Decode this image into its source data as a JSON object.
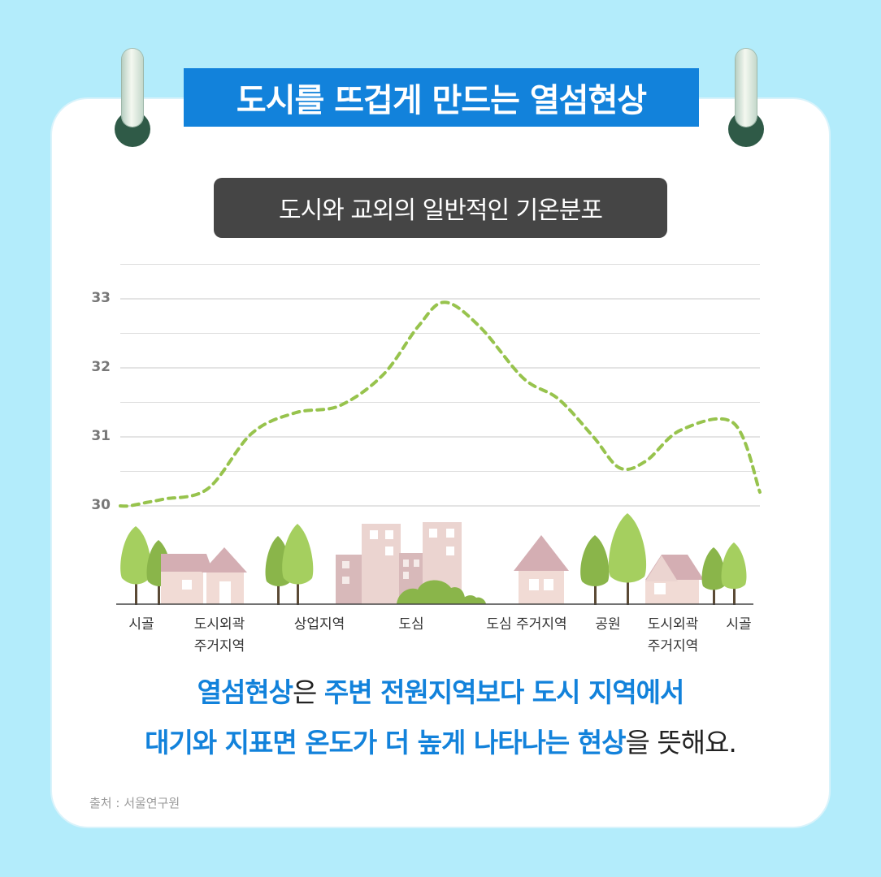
{
  "title": "도시를 뜨겁게 만드는 열섬현상",
  "chart_data": {
    "type": "line",
    "title": "도시와 교외의 일반적인 기온분포",
    "categories": [
      "시골",
      "도시외곽\n주거지역",
      "상업지역",
      "도심",
      "도심 주거지역",
      "공원",
      "도시외곽\n주거지역",
      "시골"
    ],
    "yticks": [
      30,
      31,
      32,
      33
    ],
    "ylim": [
      29.5,
      33.5
    ],
    "series": [
      {
        "x": [
          0,
          0.1,
          0.3,
          0.5,
          1.0,
          1.5,
          2.0,
          2.5,
          3.0,
          3.4,
          3.7,
          4.1,
          4.6,
          5.0,
          5.4,
          5.7,
          6.0,
          6.4,
          7.0,
          7.3
        ],
        "values": [
          30.0,
          30.0,
          30.05,
          30.1,
          30.25,
          31.05,
          31.35,
          31.45,
          31.9,
          32.6,
          32.95,
          32.6,
          31.85,
          31.55,
          31.0,
          30.55,
          30.65,
          31.1,
          31.2,
          30.2
        ],
        "color": "#97c34d",
        "style": "dashed"
      }
    ],
    "grid": true,
    "legend": "none"
  },
  "caption": {
    "line1": [
      {
        "text": "열섬현상",
        "hl": true
      },
      {
        "text": "은 ",
        "hl": false
      },
      {
        "text": "주변 전원지역보다 도시 지역에서",
        "hl": true
      }
    ],
    "line2": [
      {
        "text": "대기와 지표면 온도가 더 높게 나타나는 현상",
        "hl": true
      },
      {
        "text": "을 뜻해요.",
        "hl": false
      }
    ]
  },
  "source": "출처 : 서울연구원"
}
